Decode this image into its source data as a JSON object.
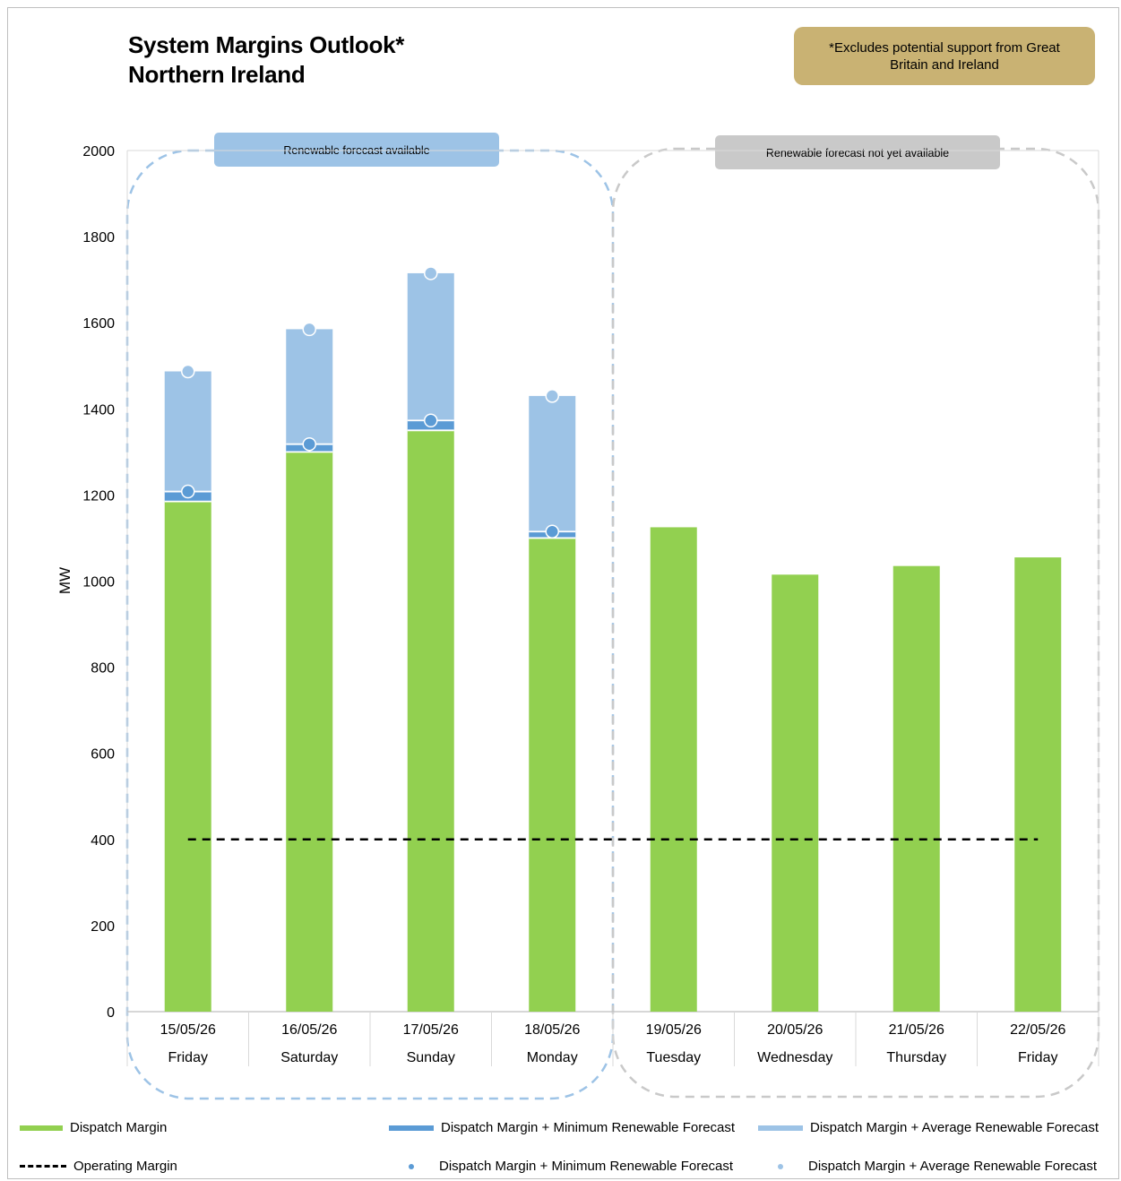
{
  "title": "System Margins Outlook*\nNorthern Ireland",
  "note": "*Excludes potential support from Great Britain and Ireland",
  "colors": {
    "dispatch": "#92d050",
    "min_renewable": "#5b9bd5",
    "avg_renewable": "#9dc3e6",
    "available_box": "#9dc3e6",
    "unavailable_box": "#c9c9c9",
    "note_bg": "#c9b273"
  },
  "panels": {
    "available_label": "Renewable forecast available",
    "unavailable_label": "Renewable forecast not yet available"
  },
  "chart_data": {
    "type": "bar",
    "ylabel": "MW",
    "ylim": [
      0,
      2000
    ],
    "yticks": [
      0,
      200,
      400,
      600,
      800,
      1000,
      1200,
      1400,
      1600,
      1800,
      2000
    ],
    "categories": [
      "15/05/26",
      "16/05/26",
      "17/05/26",
      "18/05/26",
      "19/05/26",
      "20/05/26",
      "21/05/26",
      "22/05/26"
    ],
    "days": [
      "Friday",
      "Saturday",
      "Sunday",
      "Monday",
      "Tuesday",
      "Wednesday",
      "Thursday",
      "Friday"
    ],
    "series": [
      {
        "name": "Dispatch Margin",
        "values": [
          1185,
          1300,
          1350,
          1100,
          1125,
          1015,
          1035,
          1055
        ]
      },
      {
        "name": "Dispatch Margin + Minimum Renewable Forecast",
        "values": [
          1208,
          1318,
          1373,
          1115,
          null,
          null,
          null,
          null
        ]
      },
      {
        "name": "Dispatch Margin + Average Renewable Forecast",
        "values": [
          1487,
          1585,
          1715,
          1430,
          null,
          null,
          null,
          null
        ]
      },
      {
        "name": "Operating Margin",
        "values": [
          400,
          400,
          400,
          400,
          400,
          400,
          400,
          400
        ]
      }
    ]
  },
  "legend": {
    "dispatch": "Dispatch Margin",
    "min_bar": "Dispatch Margin + Minimum Renewable Forecast",
    "avg_bar": "Dispatch Margin + Average Renewable Forecast",
    "operating": "Operating Margin",
    "min_dot": "Dispatch Margin + Minimum Renewable Forecast",
    "avg_dot": "Dispatch Margin + Average Renewable Forecast"
  }
}
